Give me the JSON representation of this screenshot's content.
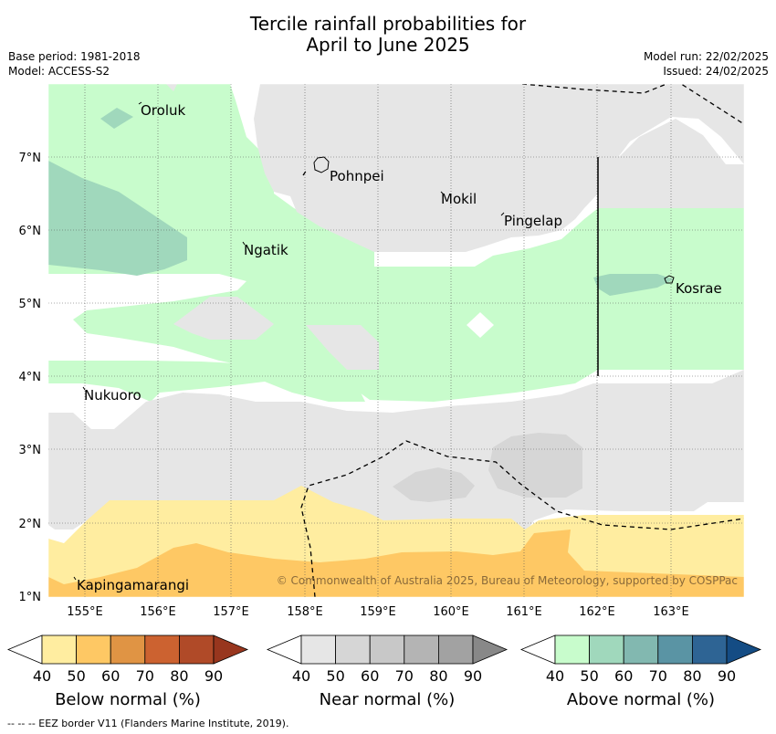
{
  "title": {
    "line1": "Tercile rainfall probabilities for",
    "line2": "April to June 2025"
  },
  "meta": {
    "base_period": "Base period: 1981-2018",
    "model": "Model: ACCESS-S2",
    "model_run": "Model run: 22/02/2025",
    "issued": "Issued: 24/02/2025"
  },
  "map": {
    "lat_ticks": [
      "1°N",
      "2°N",
      "3°N",
      "4°N",
      "5°N",
      "6°N",
      "7°N"
    ],
    "lon_ticks": [
      "155°E",
      "156°E",
      "157°E",
      "158°E",
      "159°E",
      "160°E",
      "161°E",
      "162°E",
      "163°E"
    ],
    "places": {
      "oroluk": "Oroluk",
      "pohnpei": "Pohnpei",
      "mokil": "Mokil",
      "pingelap": "Pingelap",
      "ngatik": "Ngatik",
      "kosrae": "Kosrae",
      "nukuoro": "Nukuoro",
      "kapingamarangi": "Kapingamarangi"
    },
    "copyright": "© Commonwealth of Australia 2025, Bureau of Meteorology, supported by COSPPac"
  },
  "colorbars": [
    {
      "title": "Below normal (%)",
      "ticks": [
        "40",
        "50",
        "60",
        "70",
        "80",
        "90"
      ],
      "colors": [
        "#ffeda0",
        "#fec864",
        "#e09444",
        "#cc6230",
        "#b04a28",
        "#98361e"
      ]
    },
    {
      "title": "Near normal (%)",
      "ticks": [
        "40",
        "50",
        "60",
        "70",
        "80",
        "90"
      ],
      "colors": [
        "#e6e6e6",
        "#d6d6d6",
        "#c8c8c8",
        "#b4b4b4",
        "#a2a2a2",
        "#888888"
      ]
    },
    {
      "title": "Above normal (%)",
      "ticks": [
        "40",
        "50",
        "60",
        "70",
        "80",
        "90"
      ],
      "colors": [
        "#c8fccc",
        "#a0d8bc",
        "#82b8b0",
        "#5a94a4",
        "#2e6494",
        "#144c84"
      ]
    }
  ],
  "colors": {
    "below_50": "#ffeda0",
    "below_60": "#fec864",
    "near_50": "#e6e6e6",
    "near_60": "#d6d6d6",
    "above_50": "#c8fccc",
    "above_60": "#a0d8bc"
  },
  "footnote": "--  --  -- EEZ border V11 (Flanders Marine Institute, 2019)."
}
